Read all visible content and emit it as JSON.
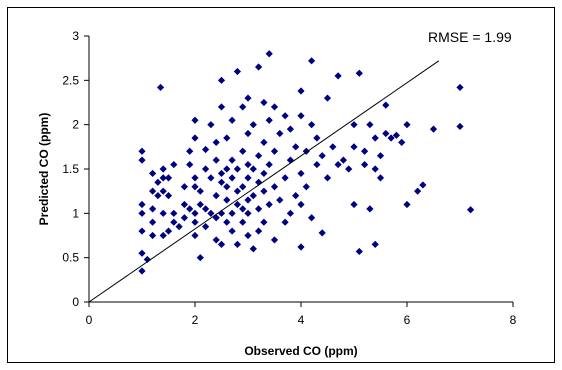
{
  "chart_data": {
    "type": "scatter",
    "xlabel": "Observed CO (ppm)",
    "ylabel": "Predicted CO (ppm)",
    "xlim": [
      0,
      8
    ],
    "ylim": [
      0,
      3
    ],
    "xticks": [
      0,
      2,
      4,
      6,
      8
    ],
    "yticks": [
      0,
      0.5,
      1,
      1.5,
      2,
      2.5,
      3
    ],
    "xtick_labels": [
      "0",
      "2",
      "4",
      "6",
      "8"
    ],
    "ytick_labels": [
      "0",
      "0.5",
      "1",
      "1.5",
      "2",
      "2.5",
      "3"
    ],
    "annotation": "RMSE = 1.99",
    "grid": false,
    "marker": "diamond",
    "marker_color": "#000080",
    "fit_line": {
      "x": [
        0,
        6.6
      ],
      "y": [
        0,
        2.72
      ]
    },
    "points": [
      [
        1.0,
        0.35
      ],
      [
        1.0,
        0.55
      ],
      [
        1.0,
        0.8
      ],
      [
        1.0,
        1.0
      ],
      [
        1.0,
        1.1
      ],
      [
        1.0,
        1.6
      ],
      [
        1.0,
        1.7
      ],
      [
        1.1,
        0.48
      ],
      [
        1.2,
        0.75
      ],
      [
        1.2,
        0.9
      ],
      [
        1.2,
        1.05
      ],
      [
        1.2,
        1.25
      ],
      [
        1.2,
        1.45
      ],
      [
        1.3,
        1.2
      ],
      [
        1.3,
        1.35
      ],
      [
        1.35,
        2.42
      ],
      [
        1.4,
        0.75
      ],
      [
        1.4,
        1.0
      ],
      [
        1.4,
        1.25
      ],
      [
        1.4,
        1.4
      ],
      [
        1.4,
        1.5
      ],
      [
        1.5,
        1.2
      ],
      [
        1.5,
        1.4
      ],
      [
        1.5,
        0.8
      ],
      [
        1.6,
        0.9
      ],
      [
        1.6,
        1.0
      ],
      [
        1.6,
        1.55
      ],
      [
        1.7,
        0.85
      ],
      [
        1.8,
        0.95
      ],
      [
        1.8,
        1.1
      ],
      [
        1.8,
        1.3
      ],
      [
        1.9,
        1.05
      ],
      [
        1.9,
        1.55
      ],
      [
        1.9,
        1.7
      ],
      [
        2.0,
        0.75
      ],
      [
        2.0,
        0.9
      ],
      [
        2.0,
        1.0
      ],
      [
        2.0,
        1.3
      ],
      [
        2.0,
        1.4
      ],
      [
        2.0,
        1.85
      ],
      [
        2.0,
        2.05
      ],
      [
        2.1,
        0.5
      ],
      [
        2.1,
        1.1
      ],
      [
        2.1,
        1.25
      ],
      [
        2.2,
        0.85
      ],
      [
        2.2,
        1.05
      ],
      [
        2.2,
        1.5
      ],
      [
        2.2,
        1.72
      ],
      [
        2.3,
        1.0
      ],
      [
        2.3,
        1.4
      ],
      [
        2.3,
        2.0
      ],
      [
        2.4,
        0.7
      ],
      [
        2.4,
        0.95
      ],
      [
        2.4,
        1.2
      ],
      [
        2.4,
        1.6
      ],
      [
        2.4,
        1.8
      ],
      [
        2.5,
        0.65
      ],
      [
        2.5,
        1.0
      ],
      [
        2.5,
        1.35
      ],
      [
        2.5,
        1.45
      ],
      [
        2.5,
        2.2
      ],
      [
        2.5,
        2.5
      ],
      [
        2.6,
        0.9
      ],
      [
        2.6,
        1.15
      ],
      [
        2.6,
        1.3
      ],
      [
        2.6,
        1.5
      ],
      [
        2.6,
        1.85
      ],
      [
        2.7,
        0.8
      ],
      [
        2.7,
        1.0
      ],
      [
        2.7,
        1.4
      ],
      [
        2.7,
        1.6
      ],
      [
        2.7,
        2.05
      ],
      [
        2.8,
        0.65
      ],
      [
        2.8,
        1.1
      ],
      [
        2.8,
        1.25
      ],
      [
        2.8,
        1.5
      ],
      [
        2.8,
        2.6
      ],
      [
        2.9,
        0.9
      ],
      [
        2.9,
        1.05
      ],
      [
        2.9,
        1.3
      ],
      [
        2.9,
        1.7
      ],
      [
        2.9,
        2.2
      ],
      [
        3.0,
        0.75
      ],
      [
        3.0,
        1.0
      ],
      [
        3.0,
        1.15
      ],
      [
        3.0,
        1.4
      ],
      [
        3.0,
        1.55
      ],
      [
        3.0,
        1.9
      ],
      [
        3.0,
        2.3
      ],
      [
        3.1,
        0.6
      ],
      [
        3.1,
        1.2
      ],
      [
        3.1,
        1.5
      ],
      [
        3.1,
        2.0
      ],
      [
        3.2,
        0.8
      ],
      [
        3.2,
        1.05
      ],
      [
        3.2,
        1.35
      ],
      [
        3.2,
        1.65
      ],
      [
        3.2,
        2.65
      ],
      [
        3.3,
        0.9
      ],
      [
        3.3,
        1.25
      ],
      [
        3.3,
        1.45
      ],
      [
        3.3,
        1.8
      ],
      [
        3.3,
        2.25
      ],
      [
        3.4,
        1.1
      ],
      [
        3.4,
        1.55
      ],
      [
        3.4,
        2.05
      ],
      [
        3.4,
        2.8
      ],
      [
        3.5,
        0.7
      ],
      [
        3.5,
        1.3
      ],
      [
        3.5,
        1.7
      ],
      [
        3.5,
        2.2
      ],
      [
        3.6,
        1.15
      ],
      [
        3.6,
        1.9
      ],
      [
        3.7,
        0.9
      ],
      [
        3.7,
        1.4
      ],
      [
        3.7,
        2.1
      ],
      [
        3.8,
        1.0
      ],
      [
        3.8,
        1.6
      ],
      [
        3.8,
        1.95
      ],
      [
        3.9,
        1.2
      ],
      [
        3.9,
        1.75
      ],
      [
        4.0,
        0.62
      ],
      [
        4.0,
        1.1
      ],
      [
        4.0,
        1.45
      ],
      [
        4.0,
        2.1
      ],
      [
        4.0,
        2.38
      ],
      [
        4.1,
        1.3
      ],
      [
        4.1,
        1.7
      ],
      [
        4.2,
        0.95
      ],
      [
        4.2,
        2.0
      ],
      [
        4.2,
        2.72
      ],
      [
        4.3,
        1.55
      ],
      [
        4.3,
        1.85
      ],
      [
        4.4,
        0.78
      ],
      [
        4.4,
        1.65
      ],
      [
        4.5,
        1.4
      ],
      [
        4.5,
        2.3
      ],
      [
        4.6,
        1.75
      ],
      [
        4.7,
        1.55
      ],
      [
        4.7,
        2.55
      ],
      [
        4.8,
        1.6
      ],
      [
        4.9,
        1.5
      ],
      [
        5.0,
        1.1
      ],
      [
        5.0,
        1.75
      ],
      [
        5.0,
        2.0
      ],
      [
        5.1,
        0.57
      ],
      [
        5.1,
        2.58
      ],
      [
        5.2,
        1.55
      ],
      [
        5.2,
        1.7
      ],
      [
        5.3,
        1.05
      ],
      [
        5.3,
        2.0
      ],
      [
        5.4,
        0.65
      ],
      [
        5.4,
        1.5
      ],
      [
        5.4,
        1.85
      ],
      [
        5.5,
        1.4
      ],
      [
        5.5,
        1.65
      ],
      [
        5.6,
        1.9
      ],
      [
        5.6,
        2.22
      ],
      [
        5.7,
        1.85
      ],
      [
        5.8,
        1.88
      ],
      [
        5.9,
        1.8
      ],
      [
        6.0,
        1.1
      ],
      [
        6.0,
        2.0
      ],
      [
        6.2,
        1.25
      ],
      [
        6.3,
        1.32
      ],
      [
        6.5,
        1.95
      ],
      [
        7.0,
        2.42
      ],
      [
        7.0,
        1.98
      ],
      [
        7.2,
        1.04
      ]
    ]
  }
}
